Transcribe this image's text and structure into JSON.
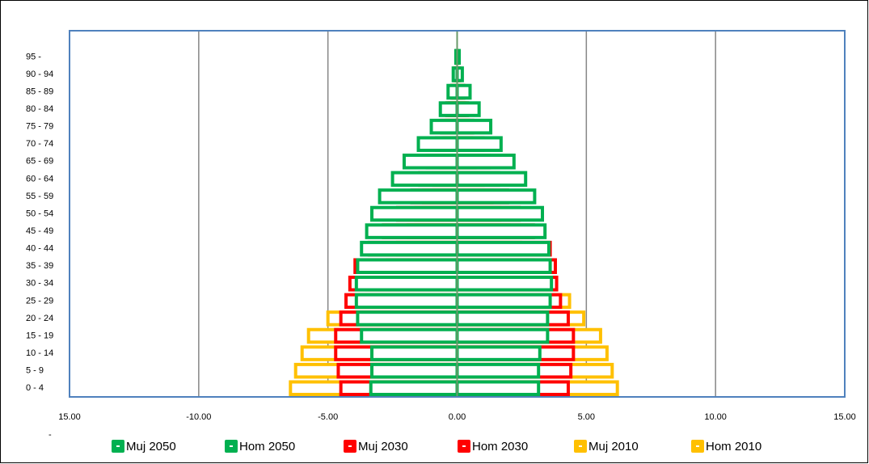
{
  "chart_data": {
    "type": "pyramid",
    "categories": [
      "0 - 4",
      "5 - 9",
      "10 - 14",
      "15 - 19",
      "20 - 24",
      "25 - 29",
      "30 - 34",
      "35 - 39",
      "40 - 44",
      "45 - 49",
      "50 - 54",
      "55 - 59",
      "60 - 64",
      "65 - 69",
      "70 - 74",
      "75 - 79",
      "80 - 84",
      "85 - 89",
      "90 - 94",
      "95 -"
    ],
    "series": [
      {
        "name": "Muj 2010",
        "color": "#ffc000",
        "values": [
          -6.45,
          -6.25,
          -6.0,
          -5.75,
          -5.0,
          -3.9,
          -3.5,
          -2.7,
          -2.3,
          -1.9,
          -1.6,
          -1.3,
          -0.9,
          -0.65,
          -0.5,
          -0.4,
          -0.3,
          -0.15,
          -0.07,
          -0.02
        ]
      },
      {
        "name": "Hom 2010",
        "color": "#ffc000",
        "values": [
          6.2,
          6.0,
          5.8,
          5.55,
          4.9,
          4.35,
          3.6,
          2.95,
          2.45,
          2.0,
          1.65,
          1.35,
          1.0,
          0.7,
          0.55,
          0.45,
          0.3,
          0.15,
          0.07,
          0.02
        ]
      },
      {
        "name": "Muj 2030",
        "color": "#ff0000",
        "values": [
          -4.5,
          -4.6,
          -4.7,
          -4.7,
          -4.5,
          -4.3,
          -4.15,
          -3.95,
          -3.4,
          -2.85,
          -2.3,
          -1.75,
          -1.45,
          -1.15,
          -0.8,
          -0.6,
          -0.4,
          -0.2,
          -0.1,
          -0.03
        ]
      },
      {
        "name": "Hom 2030",
        "color": "#ff0000",
        "values": [
          4.3,
          4.4,
          4.5,
          4.5,
          4.3,
          4.0,
          3.85,
          3.8,
          3.6,
          2.95,
          2.4,
          1.95,
          1.6,
          1.25,
          1.0,
          0.6,
          0.4,
          0.25,
          0.1,
          0.03
        ]
      },
      {
        "name": "Muj 2050",
        "color": "#00b050",
        "values": [
          -3.34,
          -3.3,
          -3.3,
          -3.7,
          -3.85,
          -3.9,
          -3.9,
          -3.85,
          -3.7,
          -3.5,
          -3.3,
          -3.0,
          -2.5,
          -2.05,
          -1.5,
          -1.0,
          -0.65,
          -0.35,
          -0.15,
          -0.05
        ]
      },
      {
        "name": "Hom 2050",
        "color": "#00b050",
        "values": [
          3.15,
          3.15,
          3.2,
          3.5,
          3.5,
          3.6,
          3.65,
          3.6,
          3.55,
          3.4,
          3.3,
          3.0,
          2.65,
          2.2,
          1.7,
          1.3,
          0.85,
          0.5,
          0.2,
          0.08
        ]
      }
    ],
    "legend_order": [
      4,
      5,
      2,
      3,
      0,
      1
    ],
    "xlim": [
      -15,
      15
    ],
    "xticks": [
      {
        "value": -15,
        "label": "15.00"
      },
      {
        "value": -10,
        "label": "-10.00"
      },
      {
        "value": -5,
        "label": "-5.00"
      },
      {
        "value": 0,
        "label": "0.00"
      },
      {
        "value": 5,
        "label": "5.00"
      },
      {
        "value": 10,
        "label": "10.00"
      },
      {
        "value": 15,
        "label": "15.00"
      }
    ],
    "annotation": "-",
    "grid": true
  }
}
